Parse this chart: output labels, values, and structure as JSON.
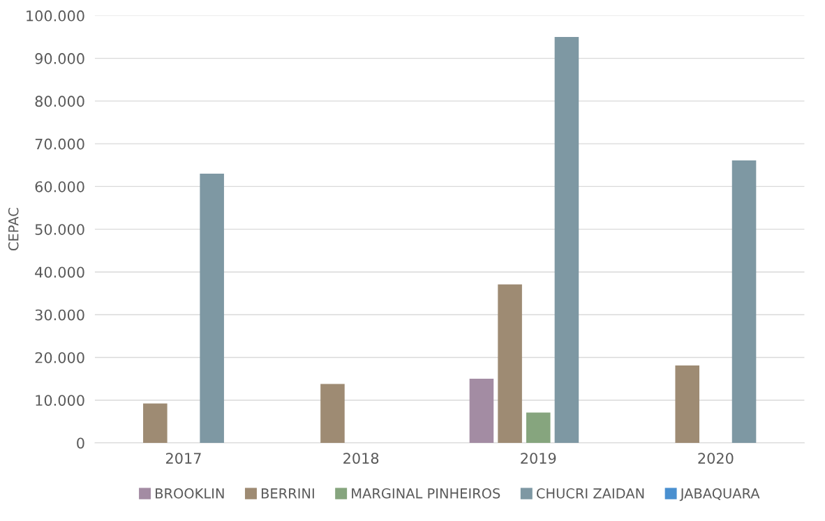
{
  "chart_data": {
    "type": "bar",
    "ylabel": "CEPAC",
    "categories": [
      "2017",
      "2018",
      "2019",
      "2020"
    ],
    "series": [
      {
        "name": "BROOKLIN",
        "color": "#a38ca3",
        "values": [
          null,
          null,
          15000,
          null
        ]
      },
      {
        "name": "BERRINI",
        "color": "#9e8b73",
        "values": [
          9200,
          13800,
          37100,
          18100
        ]
      },
      {
        "name": "MARGINAL PINHEIROS",
        "color": "#86a57e",
        "values": [
          null,
          null,
          7100,
          null
        ]
      },
      {
        "name": "CHUCRI ZAIDAN",
        "color": "#7e98a3",
        "values": [
          63000,
          null,
          95000,
          66100
        ]
      },
      {
        "name": "JABAQUARA",
        "color": "#4a90d0",
        "values": [
          null,
          null,
          null,
          null
        ]
      }
    ],
    "ylim": [
      0,
      100000
    ],
    "yticks": [
      {
        "value": 0,
        "label": "0"
      },
      {
        "value": 10000,
        "label": "10.000"
      },
      {
        "value": 20000,
        "label": "20.000"
      },
      {
        "value": 30000,
        "label": "30.000"
      },
      {
        "value": 40000,
        "label": "40.000"
      },
      {
        "value": 50000,
        "label": "50.000"
      },
      {
        "value": 60000,
        "label": "60.000"
      },
      {
        "value": 70000,
        "label": "70.000"
      },
      {
        "value": 80000,
        "label": "80.000"
      },
      {
        "value": 90000,
        "label": "90.000"
      },
      {
        "value": 100000,
        "label": "100.000"
      }
    ],
    "grid": "y",
    "legend": "bottom"
  }
}
